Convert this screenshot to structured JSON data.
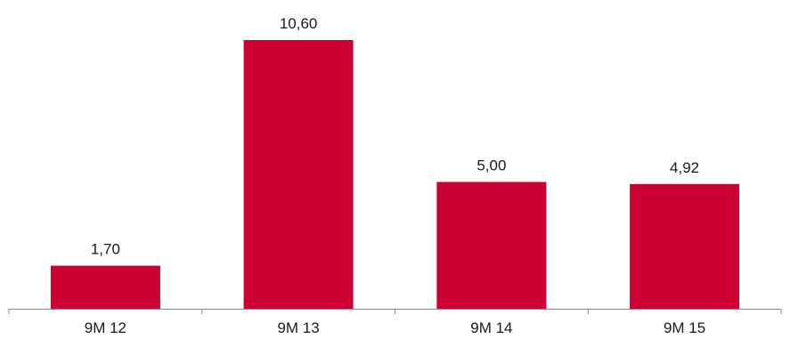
{
  "chart_data": {
    "type": "bar",
    "title": "",
    "xlabel": "",
    "ylabel": "",
    "categories": [
      "9M 12",
      "9M 13",
      "9M 14",
      "9M 15"
    ],
    "values": [
      1.7,
      10.6,
      5.0,
      4.92
    ],
    "value_labels": [
      "1,70",
      "10,60",
      "5,00",
      "4,92"
    ],
    "ylim": [
      0,
      10.6
    ],
    "grid": false,
    "legend": "none",
    "bar_color": "#cc0033",
    "axis_color": "#888888",
    "text_color": "#1a1a1a"
  }
}
